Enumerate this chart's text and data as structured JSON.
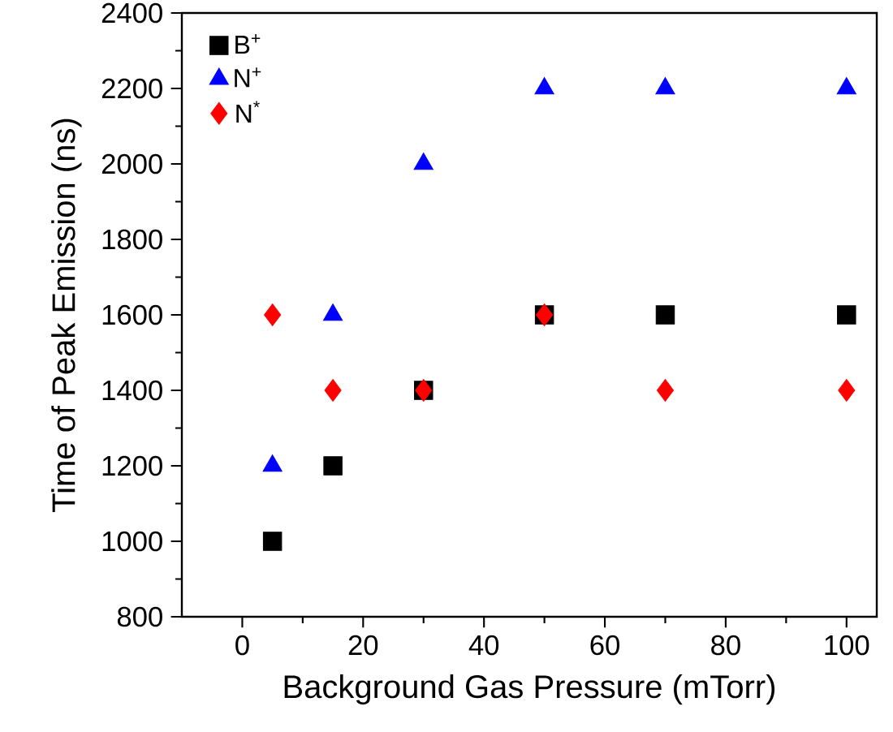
{
  "chart_data": {
    "type": "scatter",
    "xlabel": "Background Gas Pressure (mTorr)",
    "ylabel": "Time of Peak Emission (ns)",
    "x": [
      5,
      15,
      30,
      50,
      70,
      100
    ],
    "series": [
      {
        "name": "B$^{+}$",
        "color": "#000000",
        "marker": "square",
        "values": [
          1000,
          1200,
          1400,
          1600,
          1600,
          1600
        ]
      },
      {
        "name": "N$^{+}$",
        "color": "#0000ff",
        "marker": "triangle",
        "values": [
          1200,
          1600,
          2000,
          2200,
          2200,
          2200
        ]
      },
      {
        "name": "N$^{*}$",
        "color": "#ff0000",
        "marker": "diamond",
        "values": [
          1600,
          1400,
          1400,
          1600,
          1400,
          1400
        ]
      }
    ],
    "xlim": [
      -10,
      105
    ],
    "ylim": [
      800,
      2400
    ],
    "xticks": [
      0,
      20,
      40,
      60,
      80,
      100
    ],
    "yticks": [
      800,
      1000,
      1200,
      1400,
      1600,
      1800,
      2000,
      2200,
      2400
    ],
    "grid": false,
    "legend": "top left"
  }
}
